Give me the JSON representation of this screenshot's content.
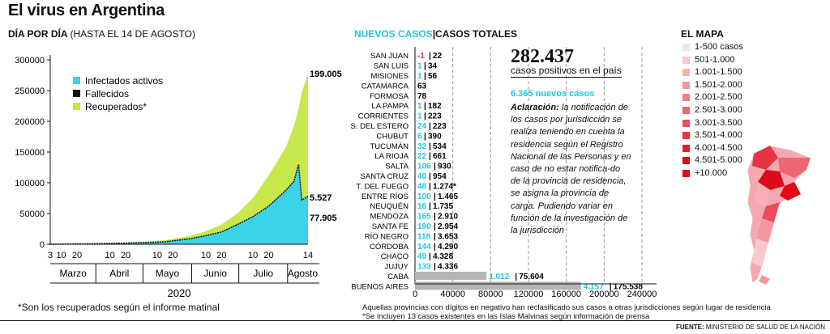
{
  "title": "El virus en Argentina",
  "left_header": {
    "bold": "DÍA POR DÍA",
    "light": "(HASTA EL 14 DE AGOSTO)"
  },
  "mid_header": {
    "new": "NUEVOS CASOS",
    "sep": "|",
    "total": "CASOS TOTALES"
  },
  "map_header": "EL MAPA",
  "colors": {
    "active": "#3ad3e8",
    "deaths": "#111111",
    "recovered": "#c6e84a",
    "new": "#1ec8e0",
    "bar_gray": "#b5b5b5",
    "neg": "#d0239a"
  },
  "big_total": "282.437",
  "big_total_label": "casos positivos en el país",
  "new_cases_line": "6.365 nuevos casos",
  "clarification_bold": "Aclaración:",
  "clarification_text": "la notificación de los casos por jurisdicción se realiza teniendo en cuenta la residencia según el Registro Nacional de las Personas y en caso de no estar notifica-do de la provincia de residencia, se asigna la provincia de carga. Pudiendo variar en función de la investigación de la jurisdicción",
  "footnote_left": "*Son los recuperados según el informe matinal",
  "footnote_mid_1": "Aquellas provincias con dígitos en negativo han reclasificado sus casos a otras jurisdicciones según lugar de residencia",
  "footnote_mid_2": "*Se incluyen 13 casos existentes en las Islas Malvinas según información de prensa",
  "source": {
    "bold": "FUENTE:",
    "text": "MINISTERIO DE SALUD DE LA NACIÓN"
  },
  "map_legend": [
    {
      "label": "1-500 casos",
      "color": "#fde0e2"
    },
    {
      "label": "501-1.000",
      "color": "#fbc9cd"
    },
    {
      "label": "1.001-1.500",
      "color": "#f8b0b6"
    },
    {
      "label": "1.501-2.000",
      "color": "#f5979f"
    },
    {
      "label": "2.001-2.500",
      "color": "#f27e88"
    },
    {
      "label": "2.501-3.000",
      "color": "#ef6571"
    },
    {
      "label": "3.001-3.500",
      "color": "#eb4c5a"
    },
    {
      "label": "3.501-4.000",
      "color": "#e73444"
    },
    {
      "label": "4.001-4.500",
      "color": "#e21d2f"
    },
    {
      "label": "4.501-5.000",
      "color": "#dc0a1c"
    },
    {
      "label": "+10.000",
      "color": "#e50914"
    }
  ],
  "chart_data": [
    {
      "type": "area",
      "ylim": [
        0,
        300000
      ],
      "yticks": [
        "0",
        "50000",
        "100000",
        "150000",
        "200000",
        "250000",
        "300000"
      ],
      "x_ticks": [
        "3",
        "10",
        "20",
        "10",
        "20",
        "10",
        "20",
        "10",
        "20",
        "10",
        "20",
        "14"
      ],
      "months": [
        "Marzo",
        "Abril",
        "Mayo",
        "Junio",
        "Julio",
        "Agosto"
      ],
      "year": "2020",
      "legend": [
        "Infectados activos",
        "Fallecidos",
        "Recuperados*"
      ],
      "end_labels": {
        "total": "199.005",
        "deaths": "5.527",
        "active": "77.905"
      },
      "x": [
        "2020-03-03",
        "2020-03-31",
        "2020-04-15",
        "2020-04-30",
        "2020-05-15",
        "2020-05-31",
        "2020-06-10",
        "2020-06-20",
        "2020-06-30",
        "2020-07-10",
        "2020-07-20",
        "2020-07-31",
        "2020-08-05",
        "2020-08-08",
        "2020-08-10",
        "2020-08-14"
      ],
      "series": [
        {
          "name": "Infectados activos",
          "values": [
            0,
            700,
            1500,
            2500,
            4000,
            9000,
            14000,
            20000,
            32000,
            45000,
            62000,
            88000,
            102000,
            130000,
            72000,
            77905
          ]
        },
        {
          "name": "Recuperados*",
          "values": [
            0,
            0,
            500,
            1300,
            2500,
            4500,
            7000,
            12000,
            18000,
            30000,
            50000,
            70000,
            90000,
            90000,
            175000,
            199005
          ]
        },
        {
          "name": "Fallecidos",
          "values": [
            0,
            30,
            130,
            200,
            300,
            500,
            700,
            1000,
            1300,
            1800,
            2500,
            3300,
            4000,
            4400,
            5000,
            5527
          ]
        }
      ]
    },
    {
      "type": "bar",
      "xlim": [
        0,
        240000
      ],
      "xticks": [
        "0",
        "40000",
        "80000",
        "120000",
        "160000",
        "200000",
        "240000"
      ],
      "categories": [
        "SAN JUAN",
        "SAN LUIS",
        "MISIONES",
        "CATAMARCA",
        "FORMOSA",
        "LA PAMPA",
        "CORRIENTES",
        "S. DEL ESTERO",
        "CHUBUT",
        "TUCUMÁN",
        "LA RIOJA",
        "SALTA",
        "SANTA CRUZ",
        "T. DEL FUEGO",
        "ENTRE RÍOS",
        "NEUQUÉN",
        "MENDOZA",
        "SANTA FE",
        "RÍO NEGRO",
        "CÓRDOBA",
        "CHACO",
        "JUJUY",
        "CABA",
        "BUENOS AIRES"
      ],
      "new_labels": [
        "-1",
        "1",
        "1",
        "",
        "",
        "1",
        "1",
        "24",
        "6",
        "32",
        "22",
        "106",
        "40",
        "48",
        "100",
        "16",
        "165",
        "190",
        "118",
        "144",
        "49",
        "133",
        "1.012",
        "4.157"
      ],
      "total_labels": [
        "22",
        "34",
        "56",
        "63",
        "78",
        "182",
        "223",
        "223",
        "390",
        "534",
        "661",
        "930",
        "954",
        "1.274*",
        "1.465",
        "1.735",
        "2.910",
        "2.954",
        "3.653",
        "4.290",
        "4.328",
        "4.336",
        "75.604",
        "175.538"
      ],
      "series": [
        {
          "name": "NUEVOS CASOS",
          "values": [
            -1,
            1,
            1,
            0,
            0,
            1,
            1,
            24,
            6,
            32,
            22,
            106,
            40,
            48,
            100,
            16,
            165,
            190,
            118,
            144,
            49,
            133,
            1012,
            4157
          ]
        },
        {
          "name": "CASOS TOTALES",
          "values": [
            22,
            34,
            56,
            63,
            78,
            182,
            223,
            223,
            390,
            534,
            661,
            930,
            954,
            1274,
            1465,
            1735,
            2910,
            2954,
            3653,
            4290,
            4328,
            4336,
            75604,
            175538
          ]
        }
      ]
    }
  ]
}
